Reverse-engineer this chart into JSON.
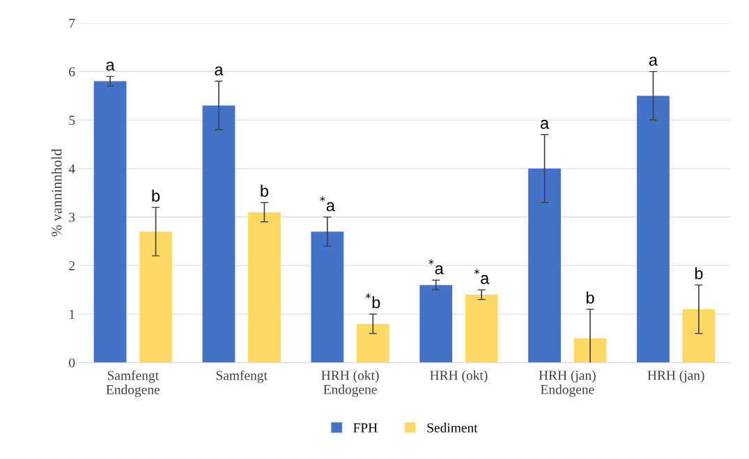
{
  "chart_data": {
    "type": "bar",
    "ylabel": "% vanninnhold",
    "categories": [
      "Samfengt\nEndogene",
      "Samfengt",
      "HRH (okt)\nEndogene",
      "HRH (okt)",
      "HRH (jan)\nEndogene",
      "HRH (jan)"
    ],
    "series": [
      {
        "name": "FPH",
        "color": "#4472c4",
        "values": [
          5.8,
          5.3,
          2.7,
          1.6,
          4.0,
          5.5
        ],
        "errors": [
          0.1,
          0.5,
          0.3,
          0.1,
          0.7,
          0.5
        ]
      },
      {
        "name": "Sediment",
        "color": "#ffd966",
        "values": [
          2.7,
          3.1,
          0.8,
          1.4,
          0.5,
          1.1
        ],
        "errors": [
          0.5,
          0.2,
          0.2,
          0.1,
          0.6,
          0.5
        ]
      }
    ],
    "annotations": [
      "a",
      "a",
      "$^{*}$a",
      "$^{*}$a",
      "a",
      "a",
      "b",
      "b",
      "$^{*}$b",
      "$^{*}$a",
      "b",
      "b"
    ],
    "ylim": [
      0,
      7
    ],
    "yticks": [
      0,
      1,
      2,
      3,
      4,
      5,
      6,
      7
    ],
    "grid": "y",
    "legend": "bottom"
  }
}
